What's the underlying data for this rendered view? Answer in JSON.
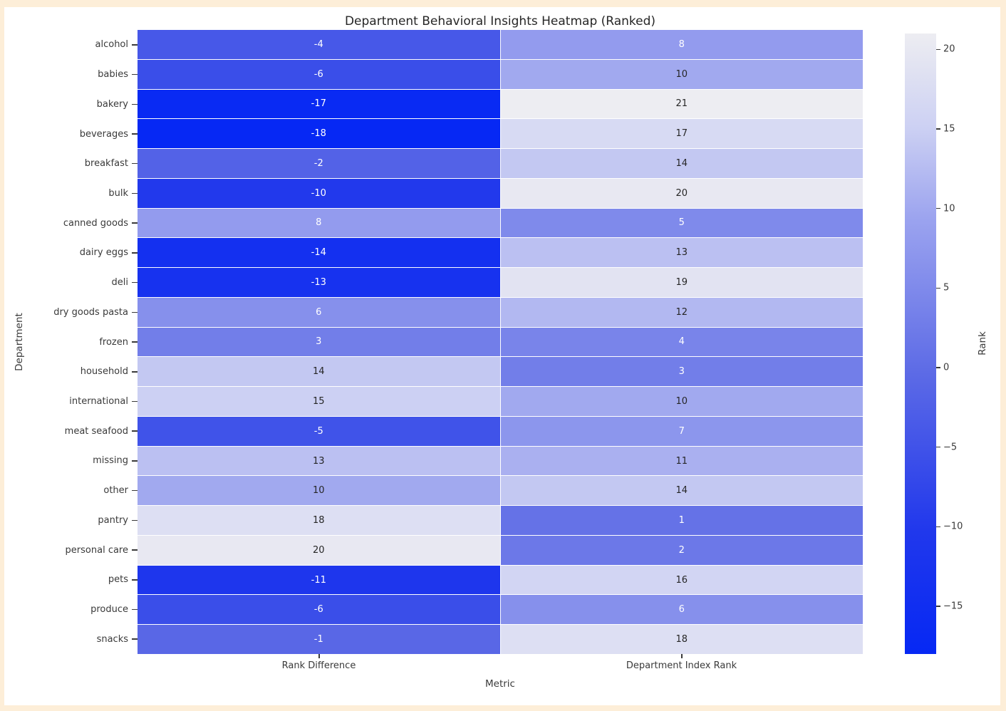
{
  "window": {
    "frame_color": "#fdeed8",
    "canvas_color": "#ffffff"
  },
  "chart_data": {
    "type": "heatmap",
    "title": "Department Behavioral Insights Heatmap (Ranked)",
    "xlabel": "Metric",
    "ylabel": "Department",
    "categories": [
      "alcohol",
      "babies",
      "bakery",
      "beverages",
      "breakfast",
      "bulk",
      "canned goods",
      "dairy eggs",
      "deli",
      "dry goods pasta",
      "frozen",
      "household",
      "international",
      "meat seafood",
      "missing",
      "other",
      "pantry",
      "personal care",
      "pets",
      "produce",
      "snacks"
    ],
    "columns": [
      "Rank Difference",
      "Department Index Rank"
    ],
    "series": [
      {
        "name": "Rank Difference",
        "values": [
          -4,
          -6,
          -17,
          -18,
          -2,
          -10,
          8,
          -14,
          -13,
          6,
          3,
          14,
          15,
          -5,
          13,
          10,
          18,
          20,
          -11,
          -6,
          -1
        ]
      },
      {
        "name": "Department Index Rank",
        "values": [
          8,
          10,
          21,
          17,
          14,
          20,
          5,
          13,
          19,
          12,
          4,
          3,
          10,
          7,
          11,
          14,
          1,
          2,
          16,
          6,
          18
        ]
      }
    ],
    "colorbar": {
      "label": "Rank",
      "tick_values": [
        20,
        15,
        10,
        5,
        0,
        -5,
        -10,
        -15
      ],
      "tick_labels": [
        "20",
        "15",
        "10",
        "5",
        "0",
        "−5",
        "−10",
        "−15"
      ],
      "vmin": -18,
      "vmax": 21
    },
    "colormap": {
      "anchors": [
        [
          0,
          "#0628f4"
        ],
        [
          0.2,
          "#2138ec"
        ],
        [
          0.45,
          "#5c6ae6"
        ],
        [
          0.7,
          "#9ba3ef"
        ],
        [
          0.85,
          "#cdd1f3"
        ],
        [
          1,
          "#ededf2"
        ]
      ]
    },
    "annotation_text_colors": {
      "light": "#ffffff",
      "dark": "#262626"
    },
    "layout": {
      "grid": false,
      "legend_position": "colorbar-right"
    }
  }
}
